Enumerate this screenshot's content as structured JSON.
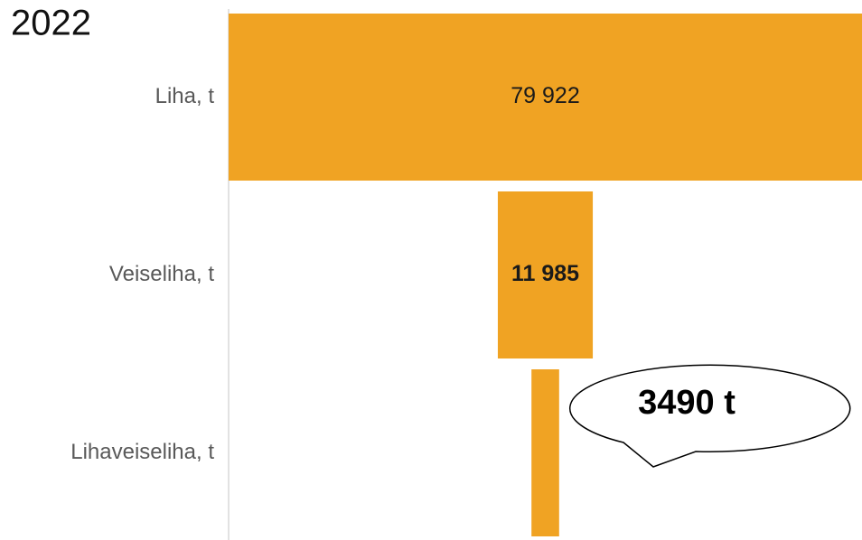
{
  "chart_data": {
    "type": "funnel",
    "title": "2022",
    "categories": [
      "Liha, t",
      "Veiseliha, t",
      "Lihaveiseliha, t"
    ],
    "values": [
      79922,
      11985,
      3490
    ],
    "value_labels": [
      "79 922",
      "11 985",
      null
    ],
    "color": "#f0a323",
    "annotation": "3490 t"
  }
}
